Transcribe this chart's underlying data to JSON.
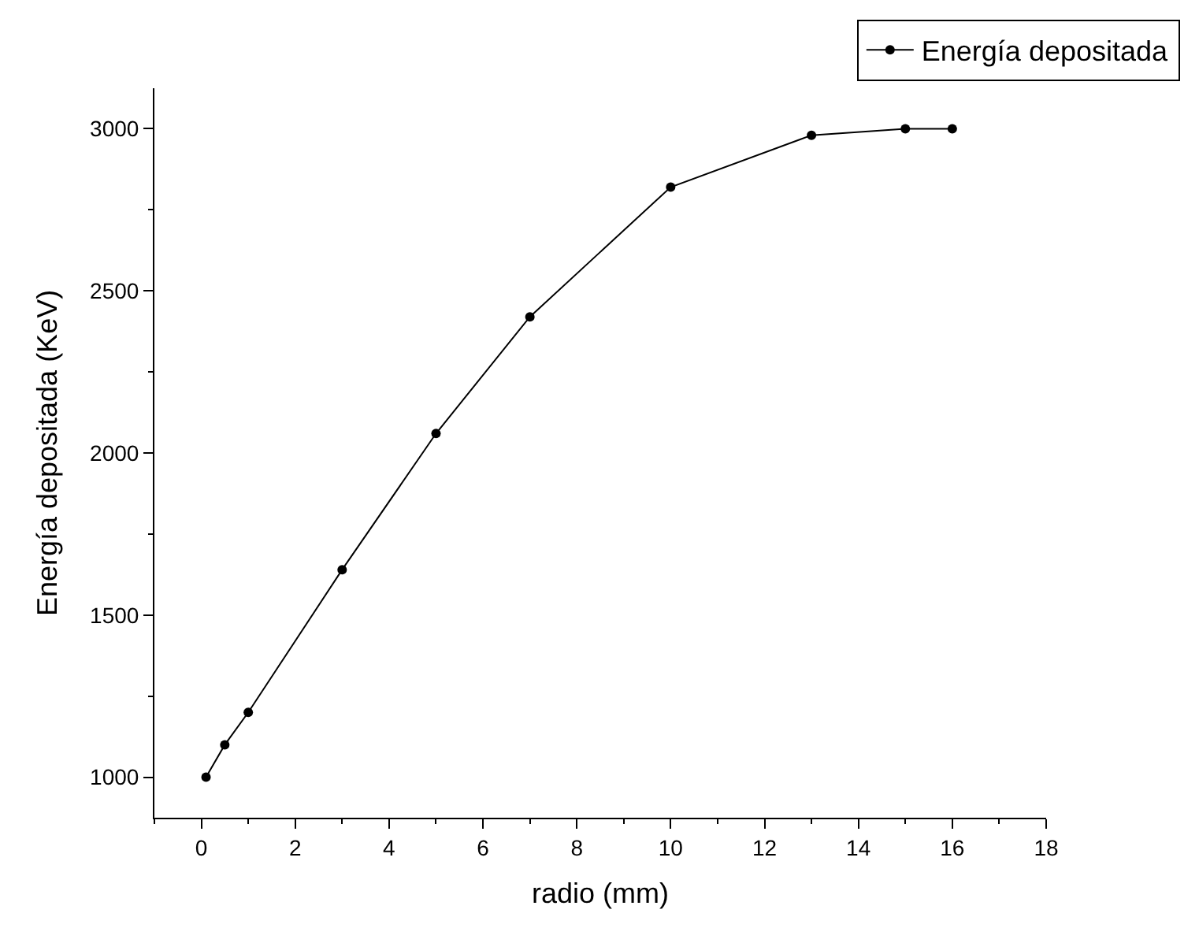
{
  "chart_data": {
    "type": "line",
    "xlabel": "radio (mm)",
    "ylabel": "Energía depositada (KeV)",
    "x": [
      0.1,
      0.5,
      1,
      3,
      5,
      7,
      10,
      13,
      15,
      16
    ],
    "series": [
      {
        "name": "Energía depositada",
        "color": "#000000",
        "values": [
          1000,
          1100,
          1200,
          1640,
          2060,
          2420,
          2820,
          2980,
          3000,
          3000
        ]
      }
    ],
    "xlim": [
      -1,
      18
    ],
    "xticks": [
      0,
      2,
      4,
      6,
      8,
      10,
      12,
      14,
      16,
      18
    ],
    "ylim": [
      875,
      3125
    ],
    "yticks": [
      1000,
      1500,
      2000,
      2500,
      3000
    ],
    "marker": "circle",
    "line_style": "solid",
    "legend": "top right"
  }
}
